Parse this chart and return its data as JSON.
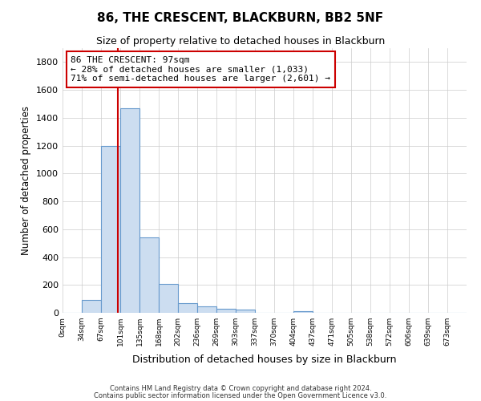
{
  "title": "86, THE CRESCENT, BLACKBURN, BB2 5NF",
  "subtitle": "Size of property relative to detached houses in Blackburn",
  "xlabel": "Distribution of detached houses by size in Blackburn",
  "ylabel": "Number of detached properties",
  "bar_labels": [
    "0sqm",
    "34sqm",
    "67sqm",
    "101sqm",
    "135sqm",
    "168sqm",
    "202sqm",
    "236sqm",
    "269sqm",
    "303sqm",
    "337sqm",
    "370sqm",
    "404sqm",
    "437sqm",
    "471sqm",
    "505sqm",
    "538sqm",
    "572sqm",
    "606sqm",
    "639sqm",
    "673sqm"
  ],
  "bar_heights": [
    0,
    90,
    1200,
    1470,
    540,
    205,
    68,
    48,
    30,
    22,
    0,
    0,
    10,
    0,
    0,
    0,
    0,
    0,
    0,
    0,
    0
  ],
  "bar_color": "#ccddf0",
  "bar_edge_color": "#6699cc",
  "property_line_color": "#cc0000",
  "annotation_title": "86 THE CRESCENT: 97sqm",
  "annotation_line1": "← 28% of detached houses are smaller (1,033)",
  "annotation_line2": "71% of semi-detached houses are larger (2,601) →",
  "annotation_box_color": "#ffffff",
  "annotation_box_edge": "#cc0000",
  "ylim": [
    0,
    1900
  ],
  "yticks": [
    0,
    200,
    400,
    600,
    800,
    1000,
    1200,
    1400,
    1600,
    1800
  ],
  "footer1": "Contains HM Land Registry data © Crown copyright and database right 2024.",
  "footer2": "Contains public sector information licensed under the Open Government Licence v3.0.",
  "background_color": "#ffffff",
  "grid_color": "#cccccc"
}
